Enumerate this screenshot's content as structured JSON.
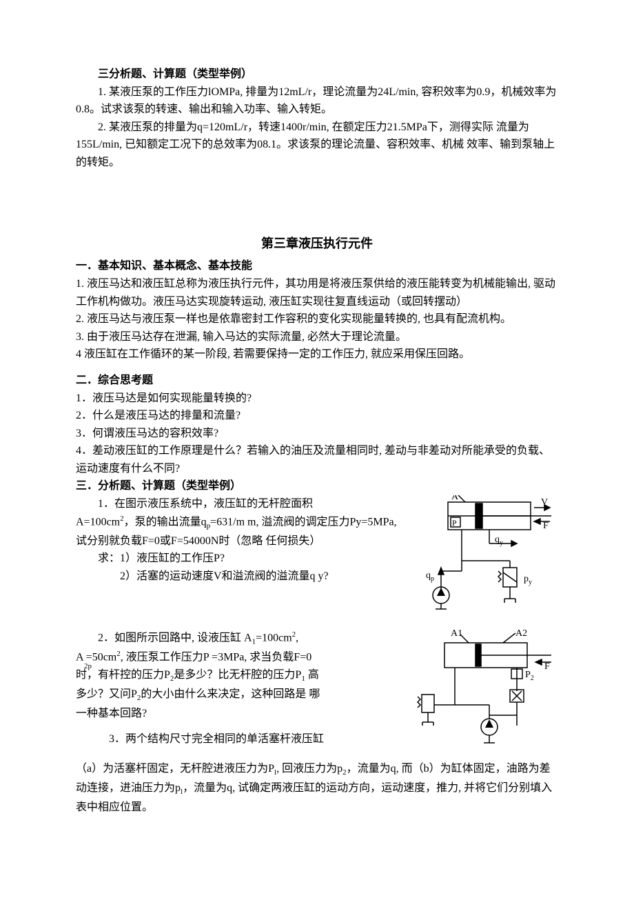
{
  "section_a": {
    "heading": "三分析题、计算题（类型举例）",
    "q1": "1.  某液压泵的工作压力lOMPa, 排量为12mL/r，理论流量为24L/min, 容积效率为0.9，机械效率为 0.8。试求该泵的转速、输出和输入功率、输入转矩。",
    "q2": "2.  某液压泵的排量为q=120mL/r，转速1400r/min, 在额定压力21.5MPa下，测得实际 流量为155L/min, 已知额定工况下的总效率为08.1。求该泵的理论流量、容积效率、机械 效率、输到泵轴上的转矩。"
  },
  "chapter": {
    "title": "第三章液压执行元件",
    "basics_heading": "一．基本知识、基本概念、基本技能",
    "b1": "1.  液压马达和液压缸总称为液压执行元件，其功用是将液压泵供给的液压能转变为机械能输出, 驱动工作机构做功。液压马达实现旋转运动, 液压缸实现往复直线运动（或回转摆动）",
    "b2": "2.  液压马达与液压泵一样也是依靠密封工作容积的变化实现能量转换的, 也具有配流机构。",
    "b3": "3.  由于液压马达存在泄漏,  输入马达的实际流量, 必然大于理论流量。",
    "b4": "4 液压缸在工作循环的某一阶段, 若需要保持一定的工作压力, 就应采用保压回路。",
    "think_heading": "二．综合思考题",
    "t1": "1．液压马达是如何实现能量转换的?",
    "t2": "2．什么是液压马达的排量和流量?",
    "t3": "3．何谓液压马达的容积效率?",
    "t4": "4．差动液压缸的工作原理是什么？若输入的油压及流量相同时, 差动与非差动对所能承受的负载、运动速度有什么不同?",
    "calc_heading": "三．分析题、计算题（类型举例）",
    "c1a": "1．在图示液压系统中，液压缸的无杆腔面积",
    "c1b_html": " A=100cm<sup>2</sup>，泵的输出流量q<sub>p</sub>=631/m m, 溢流阀的调定压力Py=5MPa, 试分别就负载F=0或F=54000N时（忽略 任何损失）",
    "c1c": "求：1）液压缸的工作压P?",
    "c1d": "2）活塞的运动速度V和溢流阀的溢流量q y?",
    "c2a_html": "2．如图所示回路中, 设液压缸  A<sub>1</sub>=100cm<sup>2</sup>,",
    "c2b_html": "A =50cm<sup>2</sup>, 液压泵工作压力P =3MPa, 求当负载F=0",
    "c2b_sub": "2p",
    "c2c_html": "时，有杆控的压力P<sub>2</sub>是多少？比无杆腔的压力P<sub>1</sub> 高",
    "c2d_html": "多少？又问P<sub>2</sub>的大小由什么来决定，这种回路是 哪",
    "c2e": "一种基本回路?",
    "c3a": "3．两个结构尺寸完全相同的单活塞杆液压缸",
    "c3b_html": "（a）为活塞杆固定，无杆腔进液压力为P<sub>l</sub>, 回液压力为p<sub>2</sub>，流量为q, 而（b）为缸体固定，油路为差动连接，进油压力为p<sub>l</sub>，流量为q, 试确定两液压缸的运动方向，运动速度，推力, 并将它们分别填入表中相应位置。"
  },
  "figures": {
    "fig1": {
      "labels": {
        "A": "A",
        "V": "V",
        "F": "F",
        "P": "P",
        "qy": "q",
        "qy_sub": "y",
        "qp": "q",
        "qp_sub": "p",
        "py": "p",
        "py_sub": "y"
      }
    },
    "fig2": {
      "labels": {
        "A1": "A1",
        "A2": "A2",
        "F": "F",
        "P2": "P",
        "P2_sub": "2"
      }
    }
  },
  "style": {
    "stroke": "#000000",
    "bg": "#ffffff"
  }
}
